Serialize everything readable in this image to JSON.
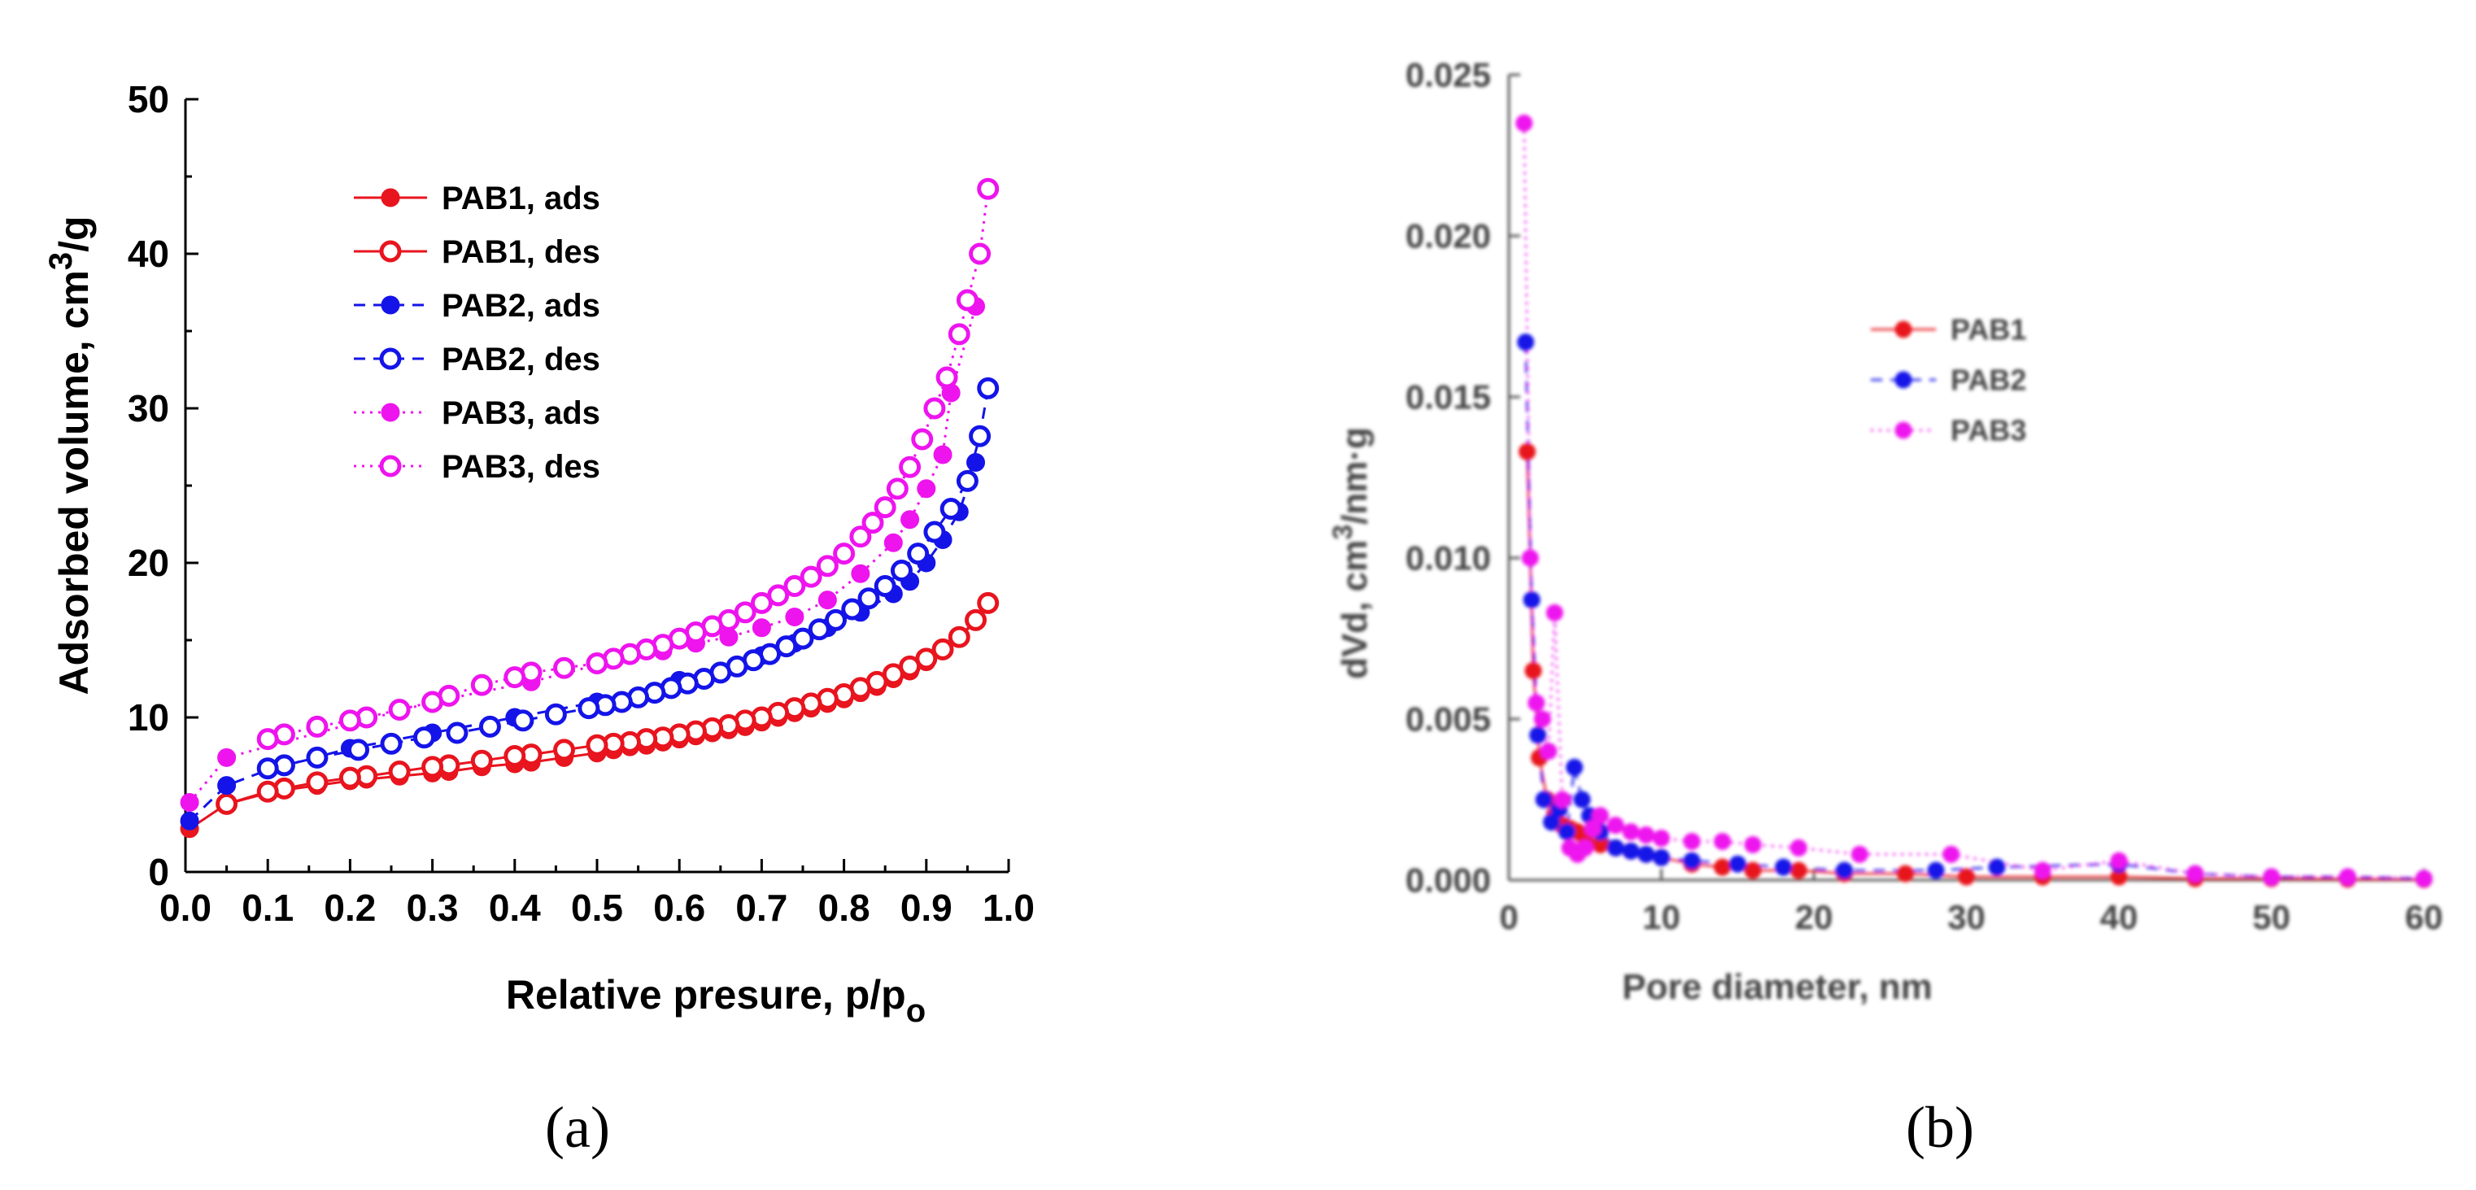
{
  "panel_labels": [
    "(a)",
    "(b)"
  ],
  "chart_data": [
    {
      "type": "line",
      "title": "",
      "xlabel": "Relative presure, p/p",
      "xlabel_sub": "o",
      "ylabel": "Adsorbed volume, cm",
      "ylabel_sup": "3",
      "ylabel_tail": "/g",
      "xlim": [
        0,
        1.0
      ],
      "ylim": [
        0,
        50
      ],
      "xticks": [
        "0.0",
        "0.1",
        "0.2",
        "0.3",
        "0.4",
        "0.5",
        "0.6",
        "0.7",
        "0.8",
        "0.9",
        "1.0"
      ],
      "yticks": [
        "0",
        "10",
        "20",
        "30",
        "40",
        "50"
      ],
      "legend_position": "upper-left",
      "series": [
        {
          "name": "PAB1, ads",
          "color": "#e8141e",
          "line": "solid",
          "marker": "filled",
          "x": [
            0.005,
            0.05,
            0.1,
            0.12,
            0.16,
            0.2,
            0.22,
            0.26,
            0.3,
            0.32,
            0.36,
            0.4,
            0.42,
            0.46,
            0.5,
            0.52,
            0.54,
            0.56,
            0.58,
            0.6,
            0.62,
            0.64,
            0.66,
            0.68,
            0.7,
            0.72,
            0.74,
            0.76,
            0.78,
            0.8,
            0.82,
            0.84,
            0.86,
            0.88,
            0.9,
            0.92,
            0.94,
            0.96,
            0.975
          ],
          "y": [
            2.8,
            4.4,
            5.1,
            5.3,
            5.6,
            5.9,
            6.0,
            6.2,
            6.4,
            6.5,
            6.8,
            7.0,
            7.1,
            7.4,
            7.7,
            7.9,
            8.1,
            8.2,
            8.4,
            8.6,
            8.8,
            9.0,
            9.2,
            9.4,
            9.7,
            10.0,
            10.3,
            10.6,
            10.9,
            11.2,
            11.6,
            12.0,
            12.5,
            13.0,
            13.6,
            14.3,
            15.2,
            16.2,
            17.4
          ]
        },
        {
          "name": "PAB1, des",
          "color": "#e8141e",
          "line": "solid",
          "marker": "open",
          "x": [
            0.975,
            0.96,
            0.94,
            0.92,
            0.9,
            0.88,
            0.86,
            0.84,
            0.82,
            0.8,
            0.78,
            0.76,
            0.74,
            0.72,
            0.7,
            0.68,
            0.66,
            0.64,
            0.62,
            0.6,
            0.58,
            0.56,
            0.54,
            0.52,
            0.5,
            0.46,
            0.42,
            0.4,
            0.36,
            0.32,
            0.3,
            0.26,
            0.22,
            0.2,
            0.16,
            0.12,
            0.1,
            0.05
          ],
          "y": [
            17.4,
            16.3,
            15.2,
            14.4,
            13.8,
            13.3,
            12.8,
            12.3,
            11.9,
            11.5,
            11.2,
            10.9,
            10.6,
            10.3,
            10.0,
            9.8,
            9.5,
            9.3,
            9.1,
            8.9,
            8.7,
            8.6,
            8.4,
            8.3,
            8.2,
            7.9,
            7.6,
            7.5,
            7.2,
            6.9,
            6.8,
            6.5,
            6.2,
            6.1,
            5.8,
            5.4,
            5.2,
            4.4
          ]
        },
        {
          "name": "PAB2, ads",
          "color": "#1414e8",
          "line": "dashed",
          "marker": "filled",
          "x": [
            0.005,
            0.05,
            0.1,
            0.2,
            0.3,
            0.4,
            0.5,
            0.6,
            0.7,
            0.74,
            0.78,
            0.82,
            0.86,
            0.88,
            0.9,
            0.92,
            0.94,
            0.96
          ],
          "y": [
            3.3,
            5.6,
            6.6,
            8.0,
            9.0,
            10.0,
            11.0,
            12.4,
            14.0,
            14.8,
            15.8,
            16.8,
            18.0,
            18.8,
            20.0,
            21.5,
            23.3,
            26.5
          ]
        },
        {
          "name": "PAB2, des",
          "color": "#1414e8",
          "line": "dashed",
          "marker": "open",
          "x": [
            0.975,
            0.965,
            0.95,
            0.93,
            0.91,
            0.89,
            0.87,
            0.85,
            0.83,
            0.81,
            0.79,
            0.77,
            0.75,
            0.73,
            0.71,
            0.69,
            0.67,
            0.65,
            0.63,
            0.61,
            0.59,
            0.57,
            0.55,
            0.53,
            0.51,
            0.49,
            0.45,
            0.41,
            0.37,
            0.33,
            0.29,
            0.25,
            0.21,
            0.16,
            0.12,
            0.1
          ],
          "y": [
            31.3,
            28.2,
            25.3,
            23.5,
            22.0,
            20.6,
            19.5,
            18.5,
            17.7,
            17.0,
            16.3,
            15.7,
            15.1,
            14.6,
            14.1,
            13.7,
            13.3,
            12.9,
            12.5,
            12.2,
            11.9,
            11.6,
            11.3,
            11.0,
            10.8,
            10.6,
            10.2,
            9.8,
            9.4,
            9.0,
            8.7,
            8.3,
            7.9,
            7.4,
            6.9,
            6.7
          ]
        },
        {
          "name": "PAB3, ads",
          "color": "#ee14ee",
          "line": "dotted",
          "marker": "filled",
          "x": [
            0.005,
            0.05,
            0.3,
            0.42,
            0.5,
            0.58,
            0.62,
            0.66,
            0.7,
            0.74,
            0.78,
            0.82,
            0.86,
            0.88,
            0.9,
            0.92,
            0.93,
            0.96
          ],
          "y": [
            4.5,
            7.4,
            11.0,
            12.3,
            13.4,
            14.3,
            14.8,
            15.2,
            15.8,
            16.5,
            17.6,
            19.3,
            21.3,
            22.8,
            24.8,
            27.0,
            31.0,
            36.6
          ]
        },
        {
          "name": "PAB3, des",
          "color": "#ee14ee",
          "line": "dotted",
          "marker": "open",
          "x": [
            0.975,
            0.965,
            0.95,
            0.94,
            0.925,
            0.91,
            0.895,
            0.88,
            0.865,
            0.85,
            0.835,
            0.82,
            0.8,
            0.78,
            0.76,
            0.74,
            0.72,
            0.7,
            0.68,
            0.66,
            0.64,
            0.62,
            0.6,
            0.58,
            0.56,
            0.54,
            0.52,
            0.5,
            0.46,
            0.42,
            0.4,
            0.36,
            0.32,
            0.3,
            0.26,
            0.22,
            0.2,
            0.16,
            0.12,
            0.1
          ],
          "y": [
            44.2,
            40.0,
            37.0,
            34.8,
            32.0,
            30.0,
            28.0,
            26.2,
            24.8,
            23.6,
            22.6,
            21.7,
            20.6,
            19.8,
            19.1,
            18.5,
            17.9,
            17.4,
            16.8,
            16.3,
            15.9,
            15.5,
            15.1,
            14.7,
            14.4,
            14.1,
            13.8,
            13.5,
            13.2,
            12.9,
            12.6,
            12.1,
            11.4,
            11.0,
            10.5,
            10.0,
            9.8,
            9.4,
            8.9,
            8.6
          ]
        }
      ]
    },
    {
      "type": "scatter",
      "title": "",
      "xlabel": "Pore diameter, nm",
      "ylabel": "dVd, cm",
      "ylabel_sup": "3",
      "ylabel_tail": "/nm·g",
      "xlim": [
        0,
        60
      ],
      "ylim": [
        0,
        0.025
      ],
      "xticks": [
        "0",
        "10",
        "20",
        "30",
        "40",
        "50",
        "60"
      ],
      "yticks": [
        "0.000",
        "0.005",
        "0.010",
        "0.015",
        "0.020",
        "0.025"
      ],
      "legend_position": "upper-right",
      "series": [
        {
          "name": "PAB1",
          "color": "#e8141e",
          "line": "solid",
          "x": [
            1.2,
            1.6,
            2,
            2.5,
            3,
            3.5,
            4,
            4.5,
            5,
            6,
            7,
            8,
            9,
            10,
            12,
            14,
            16,
            19,
            22,
            26,
            30,
            35,
            40,
            45,
            50,
            55,
            60
          ],
          "y": [
            0.0133,
            0.0065,
            0.0038,
            0.0025,
            0.002,
            0.0017,
            0.0016,
            0.0015,
            0.0013,
            0.0011,
            0.001,
            0.0009,
            0.0008,
            0.0007,
            0.0005,
            0.0004,
            0.0003,
            0.0003,
            0.0002,
            0.0002,
            0.0001,
            0.0001,
            0.0001,
            5e-05,
            5e-05,
            3e-05,
            2e-05
          ]
        },
        {
          "name": "PAB2",
          "color": "#1414e8",
          "line": "dashed",
          "x": [
            1.1,
            1.5,
            1.9,
            2.3,
            2.8,
            3.3,
            3.8,
            4.3,
            4.8,
            5.3,
            6,
            7,
            8,
            9,
            10,
            12,
            15,
            18,
            22,
            28,
            32,
            40,
            45,
            50,
            55,
            60
          ],
          "y": [
            0.0167,
            0.0087,
            0.0045,
            0.0025,
            0.0018,
            0.0022,
            0.0015,
            0.0035,
            0.0025,
            0.002,
            0.0015,
            0.001,
            0.0009,
            0.0008,
            0.0007,
            0.0006,
            0.0005,
            0.0004,
            0.0003,
            0.0003,
            0.0004,
            0.0005,
            0.0002,
            0.0001,
            0.0001,
            5e-05
          ]
        },
        {
          "name": "PAB3",
          "color": "#ee14ee",
          "line": "dotted",
          "x": [
            1,
            1.4,
            1.8,
            2.2,
            2.6,
            3,
            3.5,
            4,
            4.5,
            5,
            5.5,
            6,
            7,
            8,
            9,
            10,
            12,
            14,
            16,
            19,
            23,
            29,
            35,
            40,
            45,
            50,
            55,
            60
          ],
          "y": [
            0.0235,
            0.01,
            0.0055,
            0.005,
            0.004,
            0.0083,
            0.0025,
            0.001,
            0.0008,
            0.001,
            0.0016,
            0.002,
            0.0017,
            0.0015,
            0.0014,
            0.0013,
            0.0012,
            0.0012,
            0.0011,
            0.001,
            0.0008,
            0.0008,
            0.0003,
            0.0006,
            0.0002,
            0.0001,
            0.0001,
            5e-05
          ]
        }
      ]
    }
  ]
}
